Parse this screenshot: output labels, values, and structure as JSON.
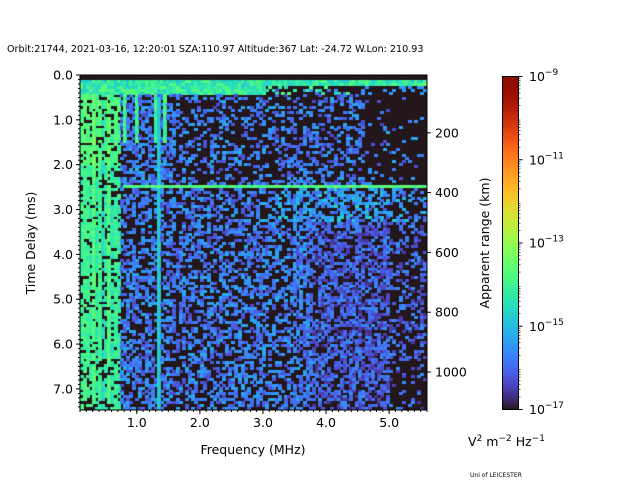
{
  "title": "Orbit:21744, 2021-03-16, 12:20:01 SZA:110.97 Altitude:367 Lat: -24.72 W.Lon: 210.93",
  "credit": "Uni of LEICESTER",
  "chart_data": {
    "type": "heatmap",
    "title": "Orbit:21744, 2021-03-16, 12:20:01 SZA:110.97 Altitude:367 Lat: -24.72 W.Lon: 210.93",
    "xlabel": "Frequency (MHz)",
    "ylabel": "Time Delay (ms)",
    "y2label": "Apparent range (km)",
    "xlim": [
      0.1,
      5.6
    ],
    "ylim": [
      7.47,
      0.0
    ],
    "x_ticks": [
      1.0,
      2.0,
      3.0,
      4.0,
      5.0
    ],
    "x_tick_labels": [
      "1.0",
      "2.0",
      "3.0",
      "4.0",
      "5.0"
    ],
    "y_ticks": [
      0.0,
      1.0,
      2.0,
      3.0,
      4.0,
      5.0,
      6.0,
      7.0
    ],
    "y_tick_labels": [
      "0.0",
      "1.0",
      "2.0",
      "3.0",
      "4.0",
      "5.0",
      "6.0",
      "7.0"
    ],
    "y2_ticks": [
      200,
      400,
      600,
      800,
      1000
    ],
    "y2_tick_labels": [
      "200",
      "400",
      "600",
      "800",
      "1000"
    ],
    "km_per_ms": 150,
    "colorbar": {
      "label_base": "V",
      "label_parts": [
        "V",
        "2",
        " m",
        "−2",
        " Hz",
        "−1"
      ],
      "scale": "log",
      "range_log10": [
        -17,
        -9
      ],
      "ticks_log10": [
        -9,
        -11,
        -13,
        -15,
        -17
      ],
      "tick_labels": [
        [
          "10",
          "−9"
        ],
        [
          "10",
          "−11"
        ],
        [
          "10",
          "−13"
        ],
        [
          "10",
          "−15"
        ],
        [
          "10",
          "−17"
        ]
      ],
      "colormap": "turbo"
    },
    "grid": {
      "freq_bins": 112,
      "delay_bins": 118
    },
    "features": {
      "floor_log10": -17,
      "background_log10": [
        -16.4,
        -15.2
      ],
      "low_freq_band": {
        "fmax": 0.75,
        "log10": [
          -14.6,
          -13.3
        ]
      },
      "top_echo": {
        "delay": [
          0.1,
          0.42
        ],
        "log10": [
          -14.8,
          -13.6
        ]
      },
      "ground_echo_line": {
        "delay": 2.5,
        "fmin": 0.8,
        "log10": [
          -14.2,
          -13.4
        ]
      },
      "vertical_line": {
        "freq": 1.35,
        "log10": -14.8
      },
      "seed": 21744
    }
  }
}
